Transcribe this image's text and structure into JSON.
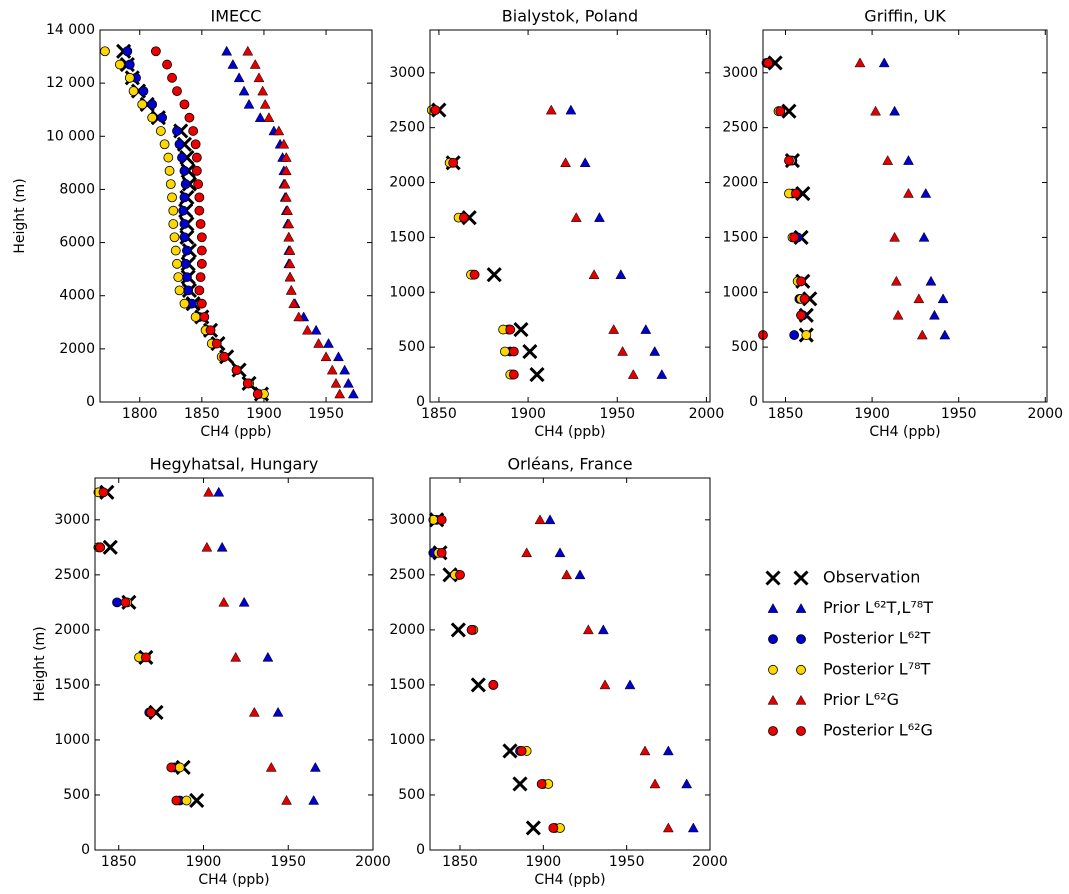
{
  "legend": {
    "entries": [
      {
        "name": "Observation",
        "color": "#000000",
        "marker": "x"
      },
      {
        "name": "Prior L⁶²T,L⁷⁸T",
        "color": "#0000cc",
        "marker": "^"
      },
      {
        "name": "Posterior L⁶²T",
        "color": "#0000cc",
        "marker": "o"
      },
      {
        "name": "Posterior L⁷⁸T",
        "color": "#ffd700",
        "marker": "o"
      },
      {
        "name": "Prior L⁶²G",
        "color": "#dd0000",
        "marker": "^"
      },
      {
        "name": "Posterior L⁶²G",
        "color": "#ee0000",
        "marker": "o"
      }
    ]
  },
  "chart_data": [
    {
      "type": "scatter",
      "title": "IMECC",
      "xlabel": "CH4 (ppb)",
      "ylabel": "Height (m)",
      "xlim": [
        1768,
        1987
      ],
      "xticks": [
        1800,
        1850,
        1900,
        1950
      ],
      "ylim": [
        0,
        14000
      ],
      "yticks": [
        0,
        2000,
        4000,
        6000,
        8000,
        {
          "value": 10000,
          "label": "10 000"
        },
        {
          "value": 12000,
          "label": "12 000"
        },
        {
          "value": 14000,
          "label": "14 000"
        }
      ],
      "series": [
        {
          "color": "#000000",
          "marker": "x",
          "x": [
            1787,
            1790,
            1794,
            1799,
            1806,
            1815,
            1833,
            1836,
            1838,
            1839,
            1840,
            1838,
            1837,
            1838,
            1838,
            1840,
            1839,
            1839,
            1840,
            1843,
            1850,
            1857,
            1863,
            1870,
            1880,
            1888,
            1898
          ],
          "values": [
            13200,
            12700,
            12200,
            11700,
            11200,
            10700,
            10200,
            9700,
            9200,
            8700,
            8200,
            7700,
            7200,
            6700,
            6200,
            5700,
            5200,
            4700,
            4200,
            3700,
            3200,
            2700,
            2200,
            1700,
            1200,
            700,
            300
          ]
        },
        {
          "color": "#0000cc",
          "marker": "^",
          "x": [
            1870,
            1875,
            1880,
            1884,
            1888,
            1897,
            1908,
            1913,
            1915,
            1916,
            1916,
            1917,
            1918,
            1919,
            1920,
            1920,
            1920,
            1921,
            1922,
            1925,
            1932,
            1942,
            1952,
            1960,
            1965,
            1968,
            1972
          ],
          "values": [
            13200,
            12700,
            12200,
            11700,
            11200,
            10700,
            10200,
            9700,
            9200,
            8700,
            8200,
            7700,
            7200,
            6700,
            6200,
            5700,
            5200,
            4700,
            4200,
            3700,
            3200,
            2700,
            2200,
            1700,
            1200,
            700,
            300
          ]
        },
        {
          "color": "#0000cc",
          "marker": "o",
          "x": [
            1790,
            1792,
            1797,
            1803,
            1810,
            1818,
            1830,
            1832,
            1834,
            1836,
            1837,
            1836,
            1835,
            1836,
            1836,
            1838,
            1837,
            1838,
            1839,
            1842,
            1848,
            1855,
            1860,
            1868,
            1878,
            1887,
            1896
          ],
          "values": [
            13200,
            12700,
            12200,
            11700,
            11200,
            10700,
            10200,
            9700,
            9200,
            8700,
            8200,
            7700,
            7200,
            6700,
            6200,
            5700,
            5200,
            4700,
            4200,
            3700,
            3200,
            2700,
            2200,
            1700,
            1200,
            700,
            300
          ]
        },
        {
          "color": "#ffd700",
          "marker": "o",
          "x": [
            1772,
            1784,
            1792,
            1795,
            1802,
            1810,
            1817,
            1820,
            1823,
            1824,
            1825,
            1826,
            1827,
            1827,
            1828,
            1829,
            1830,
            1831,
            1832,
            1836,
            1845,
            1853,
            1858,
            1866,
            1878,
            1888,
            1900
          ],
          "values": [
            13200,
            12700,
            12200,
            11700,
            11200,
            10700,
            10200,
            9700,
            9200,
            8700,
            8200,
            7700,
            7200,
            6700,
            6200,
            5700,
            5200,
            4700,
            4200,
            3700,
            3200,
            2700,
            2200,
            1700,
            1200,
            700,
            300
          ]
        },
        {
          "color": "#dd0000",
          "marker": "^",
          "x": [
            1887,
            1893,
            1896,
            1899,
            1901,
            1904,
            1912,
            1916,
            1918,
            1918,
            1917,
            1918,
            1919,
            1920,
            1920,
            1921,
            1921,
            1921,
            1922,
            1924,
            1928,
            1935,
            1944,
            1950,
            1955,
            1958,
            1961
          ],
          "values": [
            13200,
            12700,
            12200,
            11700,
            11200,
            10700,
            10200,
            9700,
            9200,
            8700,
            8200,
            7700,
            7200,
            6700,
            6200,
            5700,
            5200,
            4700,
            4200,
            3700,
            3200,
            2700,
            2200,
            1700,
            1200,
            700,
            300
          ]
        },
        {
          "color": "#ee0000",
          "marker": "o",
          "x": [
            1813,
            1822,
            1826,
            1830,
            1836,
            1840,
            1843,
            1845,
            1846,
            1846,
            1847,
            1848,
            1848,
            1849,
            1850,
            1850,
            1850,
            1849,
            1848,
            1850,
            1852,
            1857,
            1862,
            1868,
            1878,
            1887,
            1895
          ],
          "values": [
            13200,
            12700,
            12200,
            11700,
            11200,
            10700,
            10200,
            9700,
            9200,
            8700,
            8200,
            7700,
            7200,
            6700,
            6200,
            5700,
            5200,
            4700,
            4200,
            3700,
            3200,
            2700,
            2200,
            1700,
            1200,
            700,
            300
          ]
        }
      ]
    },
    {
      "type": "scatter",
      "title": "Bialystok, Poland",
      "xlabel": "CH4 (ppb)",
      "xlim": [
        1845,
        2002
      ],
      "xticks": [
        1850,
        1900,
        1950,
        2000
      ],
      "ylim": [
        0,
        3390
      ],
      "yticks": [
        0,
        500,
        1000,
        1500,
        2000,
        2500,
        3000
      ],
      "series": [
        {
          "color": "#000000",
          "marker": "x",
          "x": [
            1905,
            1901,
            1896,
            1881,
            1867,
            1858,
            1850
          ],
          "values": [
            250,
            460,
            660,
            1160,
            1680,
            2180,
            2660
          ]
        },
        {
          "color": "#0000cc",
          "marker": "^",
          "x": [
            1975,
            1971,
            1966,
            1952,
            1940,
            1932,
            1924
          ],
          "values": [
            250,
            460,
            660,
            1160,
            1680,
            2180,
            2660
          ]
        },
        {
          "color": "#0000cc",
          "marker": "o",
          "x": [
            1891,
            1890,
            1889,
            1869,
            1863,
            1857,
            1847
          ],
          "values": [
            250,
            460,
            660,
            1160,
            1680,
            2180,
            2660
          ]
        },
        {
          "color": "#ffd700",
          "marker": "o",
          "x": [
            1890,
            1887,
            1886,
            1868,
            1861,
            1856,
            1846
          ],
          "values": [
            250,
            460,
            660,
            1160,
            1680,
            2180,
            2660
          ]
        },
        {
          "color": "#dd0000",
          "marker": "^",
          "x": [
            1959,
            1953,
            1948,
            1937,
            1927,
            1921,
            1913
          ],
          "values": [
            250,
            460,
            660,
            1160,
            1680,
            2180,
            2660
          ]
        },
        {
          "color": "#ee0000",
          "marker": "o",
          "x": [
            1892,
            1892,
            1890,
            1870,
            1864,
            1858,
            1848
          ],
          "values": [
            250,
            460,
            660,
            1160,
            1680,
            2180,
            2660
          ]
        }
      ]
    },
    {
      "type": "scatter",
      "title": "Griffin, UK",
      "xlabel": "CH4 (ppb)",
      "xlim": [
        1837,
        2001
      ],
      "xticks": [
        1850,
        1900,
        1950,
        2000
      ],
      "ylim": [
        0,
        3390
      ],
      "yticks": [
        0,
        500,
        1000,
        1500,
        2000,
        2500,
        3000
      ],
      "series": [
        {
          "color": "#000000",
          "marker": "x",
          "x": [
            1862,
            1862,
            1864,
            1860,
            1859,
            1860,
            1854,
            1852,
            1844
          ],
          "values": [
            610,
            790,
            940,
            1100,
            1500,
            1900,
            2200,
            2650,
            3090
          ]
        },
        {
          "color": "#0000cc",
          "marker": "^",
          "x": [
            1942,
            1936,
            1941,
            1934,
            1930,
            1931,
            1921,
            1913,
            1907
          ],
          "values": [
            610,
            790,
            940,
            1100,
            1500,
            1900,
            2200,
            2650,
            3090
          ]
        },
        {
          "color": "#0000cc",
          "marker": "o",
          "x": [
            1855,
            1860,
            1858,
            1858,
            1857,
            1854,
            1854,
            1846,
            1839
          ],
          "values": [
            610,
            790,
            940,
            1100,
            1500,
            1900,
            2200,
            2650,
            3090
          ]
        },
        {
          "color": "#ffd700",
          "marker": "o",
          "x": [
            1862,
            1859,
            1859,
            1857,
            1854,
            1852,
            1853,
            1846,
            1840
          ],
          "values": [
            610,
            790,
            940,
            1100,
            1500,
            1900,
            2200,
            2650,
            3090
          ]
        },
        {
          "color": "#dd0000",
          "marker": "^",
          "x": [
            1929,
            1915,
            1927,
            1914,
            1913,
            1921,
            1909,
            1902,
            1893
          ],
          "values": [
            610,
            790,
            940,
            1100,
            1500,
            1900,
            2200,
            2650,
            3090
          ]
        },
        {
          "color": "#ee0000",
          "marker": "o",
          "x": [
            1837,
            1859,
            1861,
            1859,
            1855,
            1856,
            1852,
            1847,
            1840
          ],
          "values": [
            610,
            790,
            940,
            1100,
            1500,
            1900,
            2200,
            2650,
            3090
          ]
        }
      ]
    },
    {
      "type": "scatter",
      "title": "Hegyhatsal, Hungary",
      "xlabel": "CH4 (ppb)",
      "ylabel": "Height (m)",
      "xlim": [
        1836,
        2000
      ],
      "xticks": [
        1850,
        1900,
        1950,
        2000
      ],
      "ylim": [
        0,
        3380
      ],
      "yticks": [
        0,
        500,
        1000,
        1500,
        2000,
        2500,
        3000
      ],
      "series": [
        {
          "color": "#000000",
          "marker": "x",
          "x": [
            1896,
            1888,
            1872,
            1866,
            1856,
            1845,
            1843
          ],
          "values": [
            450,
            750,
            1250,
            1750,
            2250,
            2750,
            3250
          ]
        },
        {
          "color": "#0000cc",
          "marker": "^",
          "x": [
            1965,
            1966,
            1944,
            1938,
            1924,
            1911,
            1909
          ],
          "values": [
            450,
            750,
            1250,
            1750,
            2250,
            2750,
            3250
          ]
        },
        {
          "color": "#0000cc",
          "marker": "o",
          "x": [
            1886,
            1883,
            1868,
            1864,
            1849,
            1839,
            1840
          ],
          "values": [
            450,
            750,
            1250,
            1750,
            2250,
            2750,
            3250
          ]
        },
        {
          "color": "#ffd700",
          "marker": "o",
          "x": [
            1890,
            1886,
            1869,
            1862,
            1855,
            1838,
            1838
          ],
          "values": [
            450,
            750,
            1250,
            1750,
            2250,
            2750,
            3250
          ]
        },
        {
          "color": "#dd0000",
          "marker": "^",
          "x": [
            1949,
            1940,
            1930,
            1919,
            1912,
            1902,
            1903
          ],
          "values": [
            450,
            750,
            1250,
            1750,
            2250,
            2750,
            3250
          ]
        },
        {
          "color": "#ee0000",
          "marker": "o",
          "x": [
            1884,
            1881,
            1869,
            1866,
            1854,
            1839,
            1841
          ],
          "values": [
            450,
            750,
            1250,
            1750,
            2250,
            2750,
            3250
          ]
        }
      ]
    },
    {
      "type": "scatter",
      "title": "Orléans, France",
      "xlabel": "CH4 (ppb)",
      "xlim": [
        1832,
        2000
      ],
      "xticks": [
        1850,
        1900,
        1950,
        2000
      ],
      "ylim": [
        0,
        3380
      ],
      "yticks": [
        0,
        500,
        1000,
        1500,
        2000,
        2500,
        3000
      ],
      "series": [
        {
          "color": "#000000",
          "marker": "x",
          "x": [
            1894,
            1886,
            1880,
            1861,
            1849,
            1844,
            1838,
            1836
          ],
          "values": [
            200,
            600,
            900,
            1500,
            2000,
            2500,
            2700,
            3000
          ]
        },
        {
          "color": "#0000cc",
          "marker": "^",
          "x": [
            1990,
            1986,
            1975,
            1952,
            1936,
            1922,
            1910,
            1904
          ],
          "values": [
            200,
            600,
            900,
            1500,
            2000,
            2500,
            2700,
            3000
          ]
        },
        {
          "color": "#0000cc",
          "marker": "o",
          "x": [
            1907,
            1900,
            1886,
            1870,
            1857,
            1849,
            1834,
            1836
          ],
          "values": [
            200,
            600,
            900,
            1500,
            2000,
            2500,
            2700,
            3000
          ]
        },
        {
          "color": "#ffd700",
          "marker": "o",
          "x": [
            1910,
            1903,
            1890,
            1870,
            1858,
            1847,
            1837,
            1834
          ],
          "values": [
            200,
            600,
            900,
            1500,
            2000,
            2500,
            2700,
            3000
          ]
        },
        {
          "color": "#dd0000",
          "marker": "^",
          "x": [
            1975,
            1967,
            1961,
            1937,
            1927,
            1914,
            1890,
            1898
          ],
          "values": [
            200,
            600,
            900,
            1500,
            2000,
            2500,
            2700,
            3000
          ]
        },
        {
          "color": "#ee0000",
          "marker": "o",
          "x": [
            1906,
            1899,
            1887,
            1870,
            1857,
            1850,
            1839,
            1839
          ],
          "values": [
            200,
            600,
            900,
            1500,
            2000,
            2500,
            2700,
            3000
          ]
        }
      ]
    }
  ]
}
